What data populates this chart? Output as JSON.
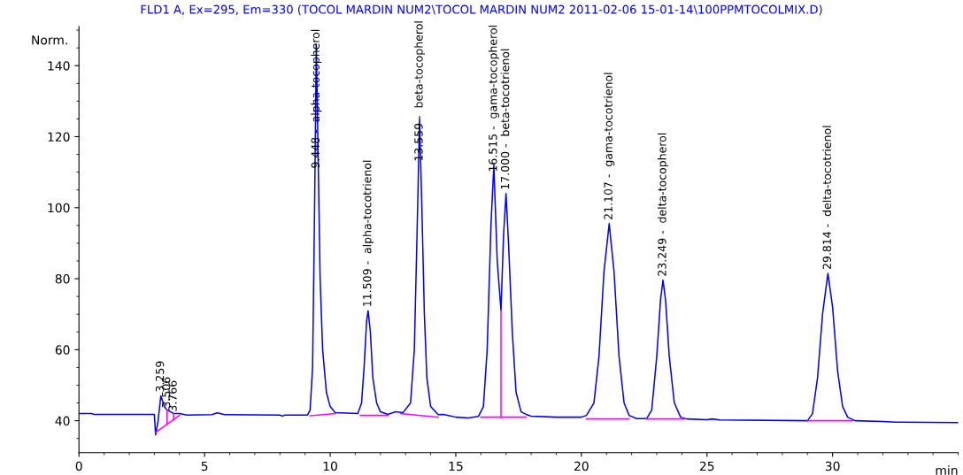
{
  "chart_data": {
    "type": "line",
    "title": "FLD1 A, Ex=295, Em=330 (TOCOL MARDIN NUM2\\TOCOL MARDIN NUM2 2011-02-06 15-01-14\\100PPMTOCOLMIX.D)",
    "xlabel": "min",
    "ylabel": "Norm.",
    "xlim": [
      0,
      35
    ],
    "xticks": [
      0,
      5,
      10,
      15,
      20,
      25,
      30
    ],
    "ylim": [
      31,
      151
    ],
    "yticks": [
      40,
      60,
      80,
      100,
      120,
      140
    ],
    "grid": false,
    "legend": false,
    "marker": "none",
    "line_style": "solid",
    "series": [
      {
        "color": "#0000ff",
        "x": [
          0,
          0.5,
          0.6,
          3.0,
          3.05,
          3.15,
          3.259,
          3.4,
          3.506,
          3.65,
          3.766,
          4.0,
          4.3,
          5.3,
          5.5,
          5.8,
          8.0,
          8.1,
          8.2,
          9.1,
          9.2,
          9.3,
          9.38,
          9.448,
          9.52,
          9.6,
          9.7,
          9.85,
          10.0,
          10.2,
          11.1,
          11.25,
          11.35,
          11.45,
          11.509,
          11.6,
          11.7,
          11.85,
          12.0,
          12.3,
          12.6,
          12.9,
          13.2,
          13.35,
          13.45,
          13.559,
          13.65,
          13.75,
          13.85,
          14.0,
          14.3,
          14.5,
          15.0,
          15.5,
          15.9,
          16.1,
          16.25,
          16.4,
          16.515,
          16.65,
          16.8,
          16.9,
          17.0,
          17.1,
          17.25,
          17.4,
          17.6,
          17.8,
          18.0,
          19.0,
          20.0,
          20.2,
          20.5,
          20.7,
          20.9,
          21.107,
          21.3,
          21.5,
          21.7,
          21.9,
          22.2,
          22.6,
          22.8,
          23.0,
          23.15,
          23.249,
          23.35,
          23.5,
          23.7,
          23.95,
          24.2,
          25.0,
          25.2,
          25.5,
          29.0,
          29.2,
          29.4,
          29.6,
          29.814,
          30.0,
          30.2,
          30.4,
          30.6,
          30.9,
          32.0,
          32.5,
          35
        ],
        "values": [
          42,
          42,
          41.8,
          41.8,
          36,
          40,
          47,
          44,
          43,
          42.5,
          42,
          42,
          41.6,
          41.7,
          42.2,
          41.7,
          41.6,
          41.3,
          41.6,
          41.6,
          43,
          55,
          100,
          146,
          115,
          80,
          60,
          48,
          44,
          42.3,
          42,
          45,
          55,
          68,
          71,
          65,
          52,
          45,
          42.5,
          41.8,
          42.5,
          42.3,
          45,
          60,
          90,
          125,
          100,
          70,
          52,
          44,
          41.7,
          41.8,
          41,
          40.8,
          41.2,
          44,
          60,
          95,
          112,
          85,
          71,
          92,
          104,
          90,
          65,
          48,
          42.5,
          41.8,
          41.3,
          41,
          41,
          41.5,
          45,
          58,
          82,
          95.5,
          82,
          58,
          45,
          41.5,
          40.6,
          40.6,
          43,
          58,
          74,
          79.6,
          74,
          58,
          45,
          41,
          40.5,
          40.3,
          40.5,
          40.2,
          40,
          42,
          52,
          70,
          81.5,
          72,
          54,
          44,
          41,
          40,
          39.8,
          39.6,
          39.5
        ]
      },
      {
        "color": "#ff00ff",
        "x": [
          3.05,
          4.0
        ],
        "values": [
          36.7,
          41.5
        ]
      },
      {
        "color": "#ff00ff",
        "x": [
          3.506,
          3.506
        ],
        "values": [
          39.3,
          43
        ]
      },
      {
        "color": "#ff00ff",
        "x": [
          3.766,
          3.766
        ],
        "values": [
          40.3,
          42
        ]
      },
      {
        "color": "#ff00ff",
        "x": [
          9.2,
          10.2
        ],
        "values": [
          41.4,
          42
        ]
      },
      {
        "color": "#ff00ff",
        "x": [
          11.2,
          12.3
        ],
        "values": [
          41.5,
          41.5
        ]
      },
      {
        "color": "#ff00ff",
        "x": [
          12.8,
          14.3
        ],
        "values": [
          42,
          41
        ]
      },
      {
        "color": "#ff00ff",
        "x": [
          16.0,
          17.8
        ],
        "values": [
          41,
          41
        ]
      },
      {
        "color": "#ff00ff",
        "x": [
          16.8,
          16.8
        ],
        "values": [
          41,
          71
        ]
      },
      {
        "color": "#ff00ff",
        "x": [
          20.2,
          21.9
        ],
        "values": [
          40.5,
          40.5
        ]
      },
      {
        "color": "#ff00ff",
        "x": [
          22.6,
          24.1
        ],
        "values": [
          40.5,
          40.5
        ]
      },
      {
        "color": "#ff00ff",
        "x": [
          29.0,
          30.8
        ],
        "values": [
          40,
          40
        ]
      }
    ],
    "annotations": [
      {
        "text": "3.259",
        "x": 3.259,
        "y": 48
      },
      {
        "text": "3.506",
        "x": 3.506,
        "y": 43.5
      },
      {
        "text": "3.766",
        "x": 3.766,
        "y": 42.5
      },
      {
        "text": "9.448 -  alpha-tocopherol",
        "x": 9.448,
        "y": 111
      },
      {
        "text": "11.509 -  alpha-tocotrienol",
        "x": 11.509,
        "y": 72
      },
      {
        "text": "13.559 -  beta-tocopherol",
        "x": 13.559,
        "y": 113
      },
      {
        "text": "16.515 -  gama-tocopherol",
        "x": 16.515,
        "y": 110
      },
      {
        "text": "17.000 -  beta-tocotrienol",
        "x": 17.0,
        "y": 105
      },
      {
        "text": "21.107 -  gama-tocotrienol",
        "x": 21.107,
        "y": 96.5
      },
      {
        "text": "23.249 -  delta-tocopherol",
        "x": 23.249,
        "y": 80.6
      },
      {
        "text": "29.814 -  delta-tocotrienol",
        "x": 29.814,
        "y": 82.5
      }
    ]
  }
}
